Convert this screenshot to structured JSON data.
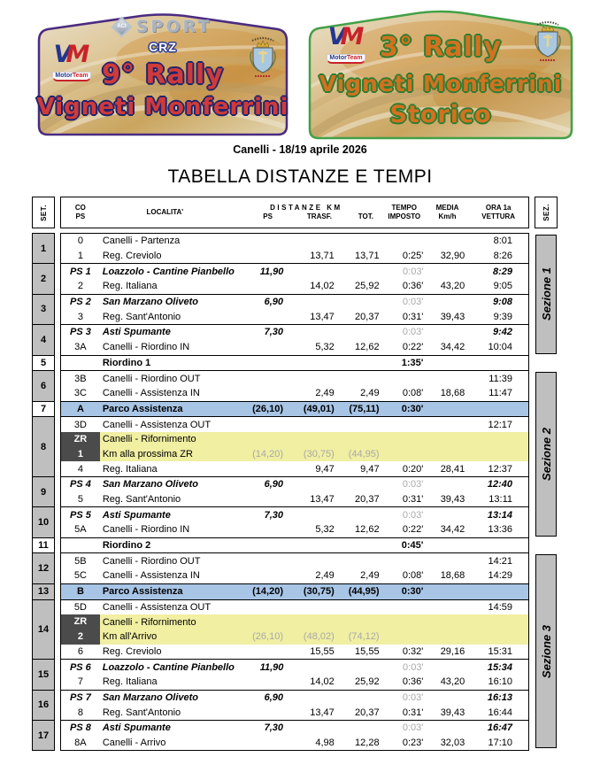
{
  "plates": {
    "modern": {
      "aci": "ACI",
      "sport": "SPORT",
      "crz": "CRZ",
      "vm_v": "V",
      "vm_m": "M",
      "vm_sub1": "Motor",
      "vm_sub2": "Team",
      "title_line1": "9° Rally",
      "title_line2": "Vigneti Monferrini",
      "border_color": "#4a2b80",
      "title_color": "#cf3a3a"
    },
    "storico": {
      "vm_v": "V",
      "vm_m": "M",
      "vm_sub1": "Motor",
      "vm_sub2": "Team",
      "title_line1": "3° Rally",
      "title_line2": "Vigneti Monferrini",
      "title_line3": "Storico",
      "border_color": "#43a047",
      "title_color": "#d2711f"
    }
  },
  "date_line": "Canelli - 18/19 aprile 2026",
  "page_title": "TABELLA DISTANZE E TEMPI",
  "colors": {
    "parco_row": "#a8c5e6",
    "rifornimento_row": "#f0efa2",
    "zr_cell": "#4b4b4b",
    "set_cell": "#bfbfbf",
    "sezione_cell": "#bfbfbf",
    "gray_text": "#a9a9a9"
  },
  "table": {
    "set_header": "SET.",
    "sez_header": "SEZ.",
    "headers": {
      "co": "CO",
      "ps": "PS",
      "localita": "LOCALITA'",
      "distanze": "DISTANZE KM",
      "ps_sub": "PS",
      "trasf": "TRASF.",
      "tot": "TOT.",
      "tempo1": "TEMPO",
      "tempo2": "IMPOSTO",
      "media1": "MEDIA",
      "media2": "Km/h",
      "ora1": "ORA 1a",
      "ora2": "VETTURA"
    },
    "groups": [
      {
        "set": "1",
        "shade": true,
        "rows": [
          {
            "style": "normal",
            "co": "0",
            "loc": "Canelli - Partenza",
            "ora": "8:01"
          },
          {
            "style": "normal",
            "co": "1",
            "loc": "Reg. Creviolo",
            "trasf": "13,71",
            "tot": "13,71",
            "tempo": "0:25'",
            "media": "32,90",
            "ora": "8:26"
          }
        ]
      },
      {
        "set": "2",
        "shade": true,
        "rows": [
          {
            "style": "ps",
            "co": "PS 1",
            "loc": "Loazzolo - Cantine Pianbello",
            "ps": "11,90",
            "tempo": "0:03'",
            "ora": "8:29"
          },
          {
            "style": "normal",
            "co": "2",
            "loc": "Reg. Italiana",
            "trasf": "14,02",
            "tot": "25,92",
            "tempo": "0:36'",
            "media": "43,20",
            "ora": "9:05"
          }
        ]
      },
      {
        "set": "3",
        "shade": true,
        "rows": [
          {
            "style": "ps",
            "co": "PS 2",
            "loc": "San Marzano Oliveto",
            "ps": "6,90",
            "tempo": "0:03'",
            "ora": "9:08"
          },
          {
            "style": "normal",
            "co": "3",
            "loc": "Reg. Sant'Antonio",
            "trasf": "13,47",
            "tot": "20,37",
            "tempo": "0:31'",
            "media": "39,43",
            "ora": "9:39"
          }
        ]
      },
      {
        "set": "4",
        "shade": true,
        "rows": [
          {
            "style": "ps",
            "co": "PS 3",
            "loc": "Asti Spumante",
            "ps": "7,30",
            "tempo": "0:03'",
            "ora": "9:42"
          },
          {
            "style": "normal",
            "co": "3A",
            "loc": "Canelli - Riordino IN",
            "trasf": "5,32",
            "tot": "12,62",
            "tempo": "0:22'",
            "media": "34,42",
            "ora": "10:04"
          }
        ]
      },
      {
        "set": "5",
        "shade": false,
        "rows": [
          {
            "style": "riordino",
            "loc": "Riordino 1",
            "tempo": "1:35'"
          }
        ]
      },
      {
        "set": "6",
        "shade": true,
        "rows": [
          {
            "style": "normal",
            "co": "3B",
            "loc": "Canelli - Riordino OUT",
            "ora": "11:39"
          },
          {
            "style": "normal",
            "co": "3C",
            "loc": "Canelli - Assistenza IN",
            "trasf": "2,49",
            "tot": "2,49",
            "tempo": "0:08'",
            "media": "18,68",
            "ora": "11:47"
          }
        ]
      },
      {
        "set": "7",
        "shade": false,
        "rows": [
          {
            "style": "parco",
            "co": "A",
            "loc": "Parco Assistenza",
            "ps": "(26,10)",
            "trasf": "(49,01)",
            "tot": "(75,11)",
            "tempo": "0:30'"
          }
        ]
      },
      {
        "set": "8",
        "shade": true,
        "rows": [
          {
            "style": "normal",
            "co": "3D",
            "loc": "Canelli - Assistenza OUT",
            "ora": "12:17"
          },
          {
            "style": "zr_a",
            "co": "ZR",
            "loc": "Canelli - Rifornimento"
          },
          {
            "style": "zr_b",
            "co": "1",
            "loc": "Km alla prossima ZR",
            "ps": "(14,20)",
            "trasf": "(30,75)",
            "tot": "(44,95)"
          },
          {
            "style": "normal",
            "co": "4",
            "loc": "Reg. Italiana",
            "trasf": "9,47",
            "tot": "9,47",
            "tempo": "0:20'",
            "media": "28,41",
            "ora": "12:37"
          }
        ]
      },
      {
        "set": "9",
        "shade": true,
        "rows": [
          {
            "style": "ps",
            "co": "PS 4",
            "loc": "San Marzano Oliveto",
            "ps": "6,90",
            "tempo": "0:03'",
            "ora": "12:40"
          },
          {
            "style": "normal",
            "co": "5",
            "loc": "Reg. Sant'Antonio",
            "trasf": "13,47",
            "tot": "20,37",
            "tempo": "0:31'",
            "media": "39,43",
            "ora": "13:11"
          }
        ]
      },
      {
        "set": "10",
        "shade": true,
        "rows": [
          {
            "style": "ps",
            "co": "PS 5",
            "loc": "Asti Spumante",
            "ps": "7,30",
            "tempo": "0:03'",
            "ora": "13:14"
          },
          {
            "style": "normal",
            "co": "5A",
            "loc": "Canelli - Riordino IN",
            "trasf": "5,32",
            "tot": "12,62",
            "tempo": "0:22'",
            "media": "34,42",
            "ora": "13:36"
          }
        ]
      },
      {
        "set": "11",
        "shade": false,
        "rows": [
          {
            "style": "riordino",
            "loc": "Riordino 2",
            "tempo": "0:45'"
          }
        ]
      },
      {
        "set": "12",
        "shade": true,
        "rows": [
          {
            "style": "normal",
            "co": "5B",
            "loc": "Canelli - Riordino OUT",
            "ora": "14:21"
          },
          {
            "style": "normal",
            "co": "5C",
            "loc": "Canelli - Assistenza IN",
            "trasf": "2,49",
            "tot": "2,49",
            "tempo": "0:08'",
            "media": "18,68",
            "ora": "14:29"
          }
        ]
      },
      {
        "set": "13",
        "shade": true,
        "rows": [
          {
            "style": "parco",
            "co": "B",
            "loc": "Parco Assistenza",
            "ps": "(14,20)",
            "trasf": "(30,75)",
            "tot": "(44,95)",
            "tempo": "0:30'"
          }
        ]
      },
      {
        "set": "14",
        "shade": true,
        "rows": [
          {
            "style": "normal",
            "co": "5D",
            "loc": "Canelli - Assistenza OUT",
            "ora": "14:59"
          },
          {
            "style": "zr_a",
            "co": "ZR",
            "loc": "Canelli - Rifornimento"
          },
          {
            "style": "zr_b",
            "co": "2",
            "loc": "Km all'Arrivo",
            "ps": "(26,10)",
            "trasf": "(48,02)",
            "tot": "(74,12)"
          },
          {
            "style": "normal",
            "co": "6",
            "loc": "Reg. Creviolo",
            "trasf": "15,55",
            "tot": "15,55",
            "tempo": "0:32'",
            "media": "29,16",
            "ora": "15:31"
          }
        ]
      },
      {
        "set": "15",
        "shade": true,
        "rows": [
          {
            "style": "ps",
            "co": "PS 6",
            "loc": "Loazzolo - Cantine Pianbello",
            "ps": "11,90",
            "tempo": "0:03'",
            "ora": "15:34"
          },
          {
            "style": "normal",
            "co": "7",
            "loc": "Reg. Italiana",
            "trasf": "14,02",
            "tot": "25,92",
            "tempo": "0:36'",
            "media": "43,20",
            "ora": "16:10"
          }
        ]
      },
      {
        "set": "16",
        "shade": true,
        "rows": [
          {
            "style": "ps",
            "co": "PS 7",
            "loc": "San Marzano Oliveto",
            "ps": "6,90",
            "tempo": "0:03'",
            "ora": "16:13"
          },
          {
            "style": "normal",
            "co": "8",
            "loc": "Reg. Sant'Antonio",
            "trasf": "13,47",
            "tot": "20,37",
            "tempo": "0:31'",
            "media": "39,43",
            "ora": "16:44"
          }
        ]
      },
      {
        "set": "17",
        "shade": true,
        "rows": [
          {
            "style": "ps",
            "co": "PS 8",
            "loc": "Asti Spumante",
            "ps": "7,30",
            "tempo": "0:03'",
            "ora": "16:47"
          },
          {
            "style": "normal",
            "co": "8A",
            "loc": "Canelli - Arrivo",
            "trasf": "4,98",
            "tot": "12,28",
            "tempo": "0:23'",
            "media": "32,03",
            "ora": "17:10"
          }
        ]
      }
    ],
    "sections": [
      {
        "label": "Sezione 1",
        "start_set": "1",
        "end_set": "4"
      },
      {
        "label": "Sezione 2",
        "start_set": "6",
        "end_set": "10"
      },
      {
        "label": "Sezione 3",
        "start_set": "12",
        "end_set": "17"
      }
    ]
  }
}
